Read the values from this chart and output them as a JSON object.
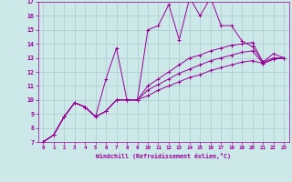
{
  "xlabel": "Windchill (Refroidissement éolien,°C)",
  "background_color": "#cce8e8",
  "grid_color": "#aacccc",
  "line_color": "#990099",
  "xlim": [
    -0.5,
    23.5
  ],
  "ylim": [
    7,
    17
  ],
  "xticks": [
    0,
    1,
    2,
    3,
    4,
    5,
    6,
    7,
    8,
    9,
    10,
    11,
    12,
    13,
    14,
    15,
    16,
    17,
    18,
    19,
    20,
    21,
    22,
    23
  ],
  "yticks": [
    7,
    8,
    9,
    10,
    11,
    12,
    13,
    14,
    15,
    16,
    17
  ],
  "series": [
    [
      7.0,
      7.5,
      8.8,
      9.8,
      9.5,
      8.8,
      11.5,
      13.7,
      10.0,
      10.0,
      15.0,
      15.3,
      16.8,
      14.3,
      17.3,
      16.0,
      17.3,
      15.3,
      15.3,
      14.2,
      13.8,
      12.7,
      13.3,
      13.0
    ],
    [
      7.0,
      7.5,
      8.8,
      9.8,
      9.5,
      8.8,
      9.2,
      10.0,
      10.0,
      10.0,
      10.3,
      10.7,
      11.0,
      11.3,
      11.6,
      11.8,
      12.1,
      12.3,
      12.5,
      12.7,
      12.8,
      12.6,
      12.9,
      13.0
    ],
    [
      7.0,
      7.5,
      8.8,
      9.8,
      9.5,
      8.8,
      9.2,
      10.0,
      10.0,
      10.0,
      10.7,
      11.1,
      11.5,
      11.9,
      12.2,
      12.5,
      12.8,
      13.0,
      13.2,
      13.4,
      13.5,
      12.6,
      12.9,
      13.0
    ],
    [
      7.0,
      7.5,
      8.8,
      9.8,
      9.5,
      8.8,
      9.2,
      10.0,
      10.0,
      10.0,
      11.0,
      11.5,
      12.0,
      12.5,
      13.0,
      13.2,
      13.5,
      13.7,
      13.9,
      14.0,
      14.1,
      12.7,
      13.0,
      13.0
    ]
  ]
}
